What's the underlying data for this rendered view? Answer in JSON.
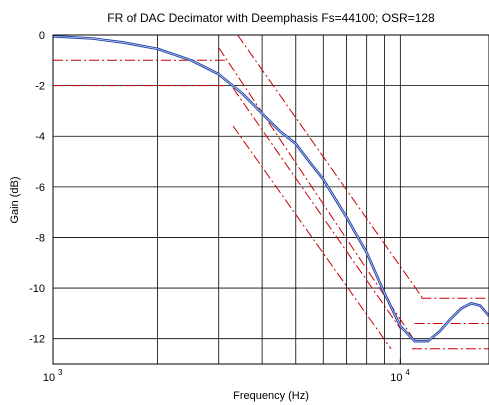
{
  "chart_data": {
    "type": "line",
    "title": "FR of DAC Decimator with Deemphasis Fs=44100; OSR=128",
    "xlabel": "Frequency (Hz)",
    "ylabel": "Gain (dB)",
    "xscale": "log",
    "xlim": [
      1000,
      18000
    ],
    "ylim": [
      -13,
      0
    ],
    "grid": true,
    "x_ticks": [
      {
        "value": 1000,
        "base": "10",
        "exp": "3"
      },
      {
        "value": 10000,
        "base": "10",
        "exp": "4"
      }
    ],
    "y_ticks": [
      {
        "value": 0,
        "label": "0"
      },
      {
        "value": -2,
        "label": "-2"
      },
      {
        "value": -4,
        "label": "-4"
      },
      {
        "value": -6,
        "label": "-6"
      },
      {
        "value": -8,
        "label": "-8"
      },
      {
        "value": -10,
        "label": "-10"
      },
      {
        "value": -12,
        "label": "-12"
      }
    ],
    "series": [
      {
        "color": "#2244aa",
        "style": "solid",
        "x": [
          1000,
          1300,
          1600,
          2000,
          2500,
          3000,
          3500,
          4000,
          4500,
          5000,
          5500,
          6000,
          7000,
          8000,
          9000,
          10000,
          11000,
          12000,
          13000,
          14000,
          15000,
          16000,
          17000,
          18000
        ],
        "y": [
          -0.05,
          -0.14,
          -0.3,
          -0.55,
          -1.0,
          -1.55,
          -2.3,
          -3.1,
          -3.8,
          -4.3,
          -5.05,
          -5.7,
          -7.2,
          -8.6,
          -10.2,
          -11.5,
          -12.1,
          -12.1,
          -11.7,
          -11.2,
          -10.8,
          -10.6,
          -10.7,
          -11.1
        ]
      }
    ],
    "tolerance_lines": [
      {
        "color": "#cc0000",
        "style": "dashdot",
        "x": [
          1000,
          3150
        ],
        "y": [
          -1,
          -1
        ]
      },
      {
        "color": "#cc0000",
        "style": "dashdot",
        "x": [
          1000,
          3100
        ],
        "y": [
          -2,
          -2
        ]
      },
      {
        "color": "#cc0000",
        "style": "dashdot",
        "x": [
          3400,
          11600
        ],
        "y": [
          0,
          -10.4
        ]
      },
      {
        "color": "#cc0000",
        "style": "dashdot",
        "x": [
          3000,
          10900
        ],
        "y": [
          -0.5,
          -12.0
        ]
      },
      {
        "color": "#cc0000",
        "style": "dashdot",
        "x": [
          3300,
          10000
        ],
        "y": [
          -2.1,
          -11.6
        ]
      },
      {
        "color": "#cc0000",
        "style": "dashdot",
        "x": [
          3300,
          9400
        ],
        "y": [
          -3.6,
          -12.4
        ]
      },
      {
        "color": "#cc0000",
        "style": "dashdot",
        "x": [
          11500,
          18000
        ],
        "y": [
          -10.4,
          -10.4
        ]
      },
      {
        "color": "#cc0000",
        "style": "dashdot",
        "x": [
          11000,
          18000
        ],
        "y": [
          -11.4,
          -11.4
        ]
      },
      {
        "color": "#cc0000",
        "style": "dashdot",
        "x": [
          10800,
          18000
        ],
        "y": [
          -12.4,
          -12.4
        ]
      }
    ]
  }
}
